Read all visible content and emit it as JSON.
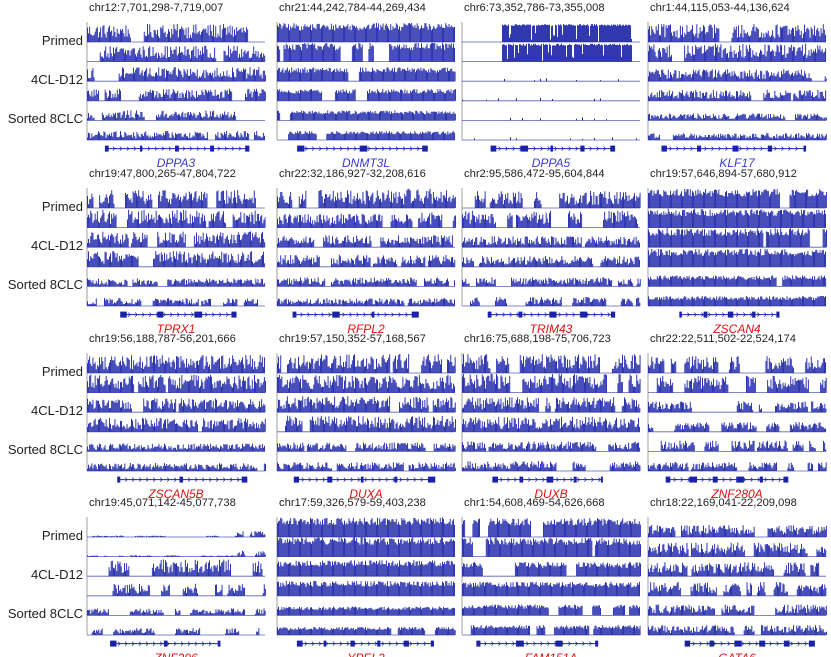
{
  "track_labels": [
    "Primed",
    "4CL-D12",
    "Sorted 8CLC"
  ],
  "colors": {
    "track": "#1a22a8",
    "gene_known": "#3a3ad0",
    "gene_novel": "#e01010",
    "text": "#222222"
  },
  "panels": [
    {
      "coord": "chr12:7,701,298-7,719,007",
      "gene": "DPPA3",
      "gene_color": "#3a3ad0"
    },
    {
      "coord": "chr21:44,242,784-44,269,434",
      "gene": "DNMT3L",
      "gene_color": "#3a3ad0"
    },
    {
      "coord": "chr6:73,352,786-73,355,008",
      "gene": "DPPA5",
      "gene_color": "#3a3ad0"
    },
    {
      "coord": "chr1:44,115,053-44,136,624",
      "gene": "KLF17",
      "gene_color": "#3a3ad0"
    },
    {
      "coord": "chr19:47,800,265-47,804,722",
      "gene": "TPRX1",
      "gene_color": "#e01010"
    },
    {
      "coord": "chr22:32,186,927-32,208,616",
      "gene": "RFPL2",
      "gene_color": "#e01010"
    },
    {
      "coord": "chr2:95,586,472-95,604,844",
      "gene": "TRIM43",
      "gene_color": "#e01010"
    },
    {
      "coord": "chr19:57,646,894-57,680,912",
      "gene": "ZSCAN4",
      "gene_color": "#e01010"
    },
    {
      "coord": "chr19:56,188,787-56,201,666",
      "gene": "ZSCAN5B",
      "gene_color": "#e01010"
    },
    {
      "coord": "chr19:57,150,352-57,168,567",
      "gene": "DUXA",
      "gene_color": "#e01010"
    },
    {
      "coord": "chr16:75,688,198-75,706,723",
      "gene": "DUXB",
      "gene_color": "#e01010"
    },
    {
      "coord": "chr22:22,511,502-22,524,174",
      "gene": "ZNF280A",
      "gene_color": "#e01010"
    },
    {
      "coord": "chr19:45,071,142-45,077,738",
      "gene": "ZNF296",
      "gene_color": "#e01010"
    },
    {
      "coord": "chr17:59,326,579-59,403,238",
      "gene": "YPEL2",
      "gene_color": "#e01010"
    },
    {
      "coord": "chr1:54,608,469-54,626,668",
      "gene": "FAM151A",
      "gene_color": "#e01010"
    },
    {
      "coord": "chr18:22,169,041-22,209,098",
      "gene": "GATA6",
      "gene_color": "#e01010"
    }
  ]
}
